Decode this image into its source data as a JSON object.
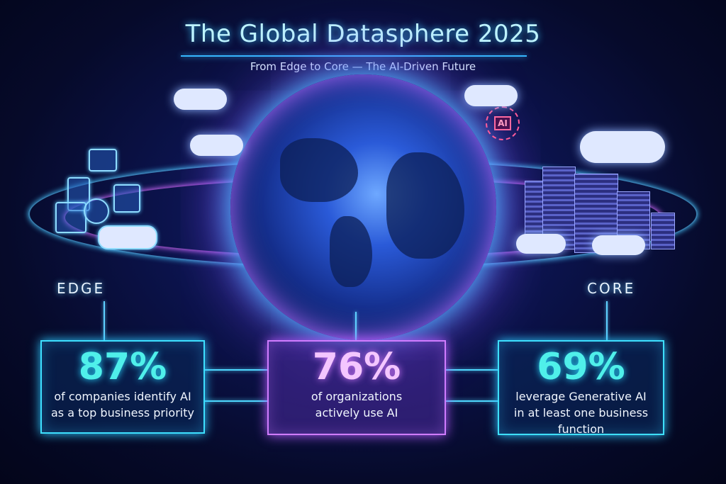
{
  "header": {
    "title": "The Global Datasphere 2025",
    "subtitle": "From Edge to Core — The AI-Driven Future"
  },
  "sections": {
    "edge_label": "EDGE",
    "core_label": "CORE",
    "ai_chip_label": "AI"
  },
  "stats": [
    {
      "value": "87%",
      "line1": "of companies identify AI",
      "line2": "as a top business priority",
      "color": "#4ff0ea"
    },
    {
      "value": "76%",
      "line1": "of organizations",
      "line2": "actively use AI",
      "color": "#f4c6ff"
    },
    {
      "value": "69%",
      "line1": "leverage Generative AI",
      "line2": "in at least one business function",
      "color": "#4ff0ea"
    }
  ],
  "colors": {
    "accent_cyan": "#3ee0ff",
    "accent_purple": "#d07cff",
    "background": "#060a2a"
  }
}
